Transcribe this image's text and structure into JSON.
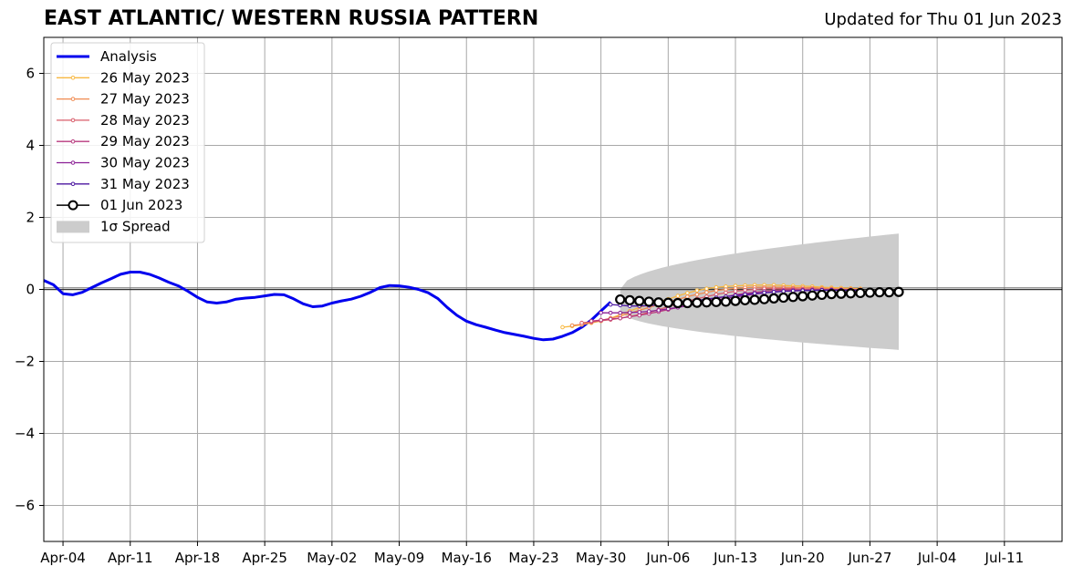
{
  "chart_data": {
    "type": "line",
    "title": "EAST ATLANTIC/ WESTERN RUSSIA PATTERN",
    "subtitle": "Updated for Thu 01 Jun 2023",
    "xlabel": "",
    "ylabel": "",
    "x_start": "2023-04-02",
    "x_end": "2023-07-17",
    "xlim": [
      "2023-04-02",
      "2023-07-17"
    ],
    "ylim": [
      -7,
      7
    ],
    "yticks": [
      -6,
      -4,
      -2,
      0,
      2,
      4,
      6
    ],
    "ytick_labels": [
      "−6",
      "−4",
      "−2",
      "0",
      "2",
      "4",
      "6"
    ],
    "xticks": [
      {
        "date": "2023-04-04",
        "label": "Apr-04"
      },
      {
        "date": "2023-04-11",
        "label": "Apr-11"
      },
      {
        "date": "2023-04-18",
        "label": "Apr-18"
      },
      {
        "date": "2023-04-25",
        "label": "Apr-25"
      },
      {
        "date": "2023-05-02",
        "label": "May-02"
      },
      {
        "date": "2023-05-09",
        "label": "May-09"
      },
      {
        "date": "2023-05-16",
        "label": "May-16"
      },
      {
        "date": "2023-05-23",
        "label": "May-23"
      },
      {
        "date": "2023-05-30",
        "label": "May-30"
      },
      {
        "date": "2023-06-06",
        "label": "Jun-06"
      },
      {
        "date": "2023-06-13",
        "label": "Jun-13"
      },
      {
        "date": "2023-06-20",
        "label": "Jun-20"
      },
      {
        "date": "2023-06-27",
        "label": "Jun-27"
      },
      {
        "date": "2023-07-04",
        "label": "Jul-04"
      },
      {
        "date": "2023-07-11",
        "label": "Jul-11"
      }
    ],
    "grid": true,
    "legend_position": "top-left",
    "analysis": {
      "name": "Analysis",
      "color": "#0000ee",
      "x": [
        "2023-04-02",
        "2023-04-03",
        "2023-04-04",
        "2023-04-05",
        "2023-04-06",
        "2023-04-07",
        "2023-04-08",
        "2023-04-09",
        "2023-04-10",
        "2023-04-11",
        "2023-04-12",
        "2023-04-13",
        "2023-04-14",
        "2023-04-15",
        "2023-04-16",
        "2023-04-17",
        "2023-04-18",
        "2023-04-19",
        "2023-04-20",
        "2023-04-21",
        "2023-04-22",
        "2023-04-23",
        "2023-04-24",
        "2023-04-25",
        "2023-04-26",
        "2023-04-27",
        "2023-04-28",
        "2023-04-29",
        "2023-04-30",
        "2023-05-01",
        "2023-05-02",
        "2023-05-03",
        "2023-05-04",
        "2023-05-05",
        "2023-05-06",
        "2023-05-07",
        "2023-05-08",
        "2023-05-09",
        "2023-05-10",
        "2023-05-11",
        "2023-05-12",
        "2023-05-13",
        "2023-05-14",
        "2023-05-15",
        "2023-05-16",
        "2023-05-17",
        "2023-05-18",
        "2023-05-19",
        "2023-05-20",
        "2023-05-21",
        "2023-05-22",
        "2023-05-23",
        "2023-05-24",
        "2023-05-25",
        "2023-05-26",
        "2023-05-27",
        "2023-05-28",
        "2023-05-29",
        "2023-05-30",
        "2023-05-31"
      ],
      "values": [
        0.25,
        0.13,
        -0.12,
        -0.15,
        -0.08,
        0.05,
        0.18,
        0.3,
        0.42,
        0.48,
        0.48,
        0.42,
        0.32,
        0.2,
        0.1,
        -0.05,
        -0.22,
        -0.35,
        -0.38,
        -0.35,
        -0.27,
        -0.24,
        -0.22,
        -0.18,
        -0.14,
        -0.15,
        -0.26,
        -0.4,
        -0.48,
        -0.46,
        -0.38,
        -0.32,
        -0.27,
        -0.19,
        -0.08,
        0.05,
        0.11,
        0.1,
        0.06,
        0.0,
        -0.09,
        -0.25,
        -0.5,
        -0.72,
        -0.88,
        -0.98,
        -1.05,
        -1.13,
        -1.2,
        -1.25,
        -1.3,
        -1.36,
        -1.4,
        -1.38,
        -1.3,
        -1.2,
        -1.05,
        -0.85,
        -0.6,
        -0.35
      ]
    },
    "forecasts": [
      {
        "name": "26 May 2023",
        "color": "#f8b840",
        "start": "2023-05-26",
        "values": [
          -1.05,
          -1.02,
          -0.98,
          -0.93,
          -0.88,
          -0.8,
          -0.7,
          -0.6,
          -0.5,
          -0.42,
          -0.34,
          -0.27,
          -0.18,
          -0.1,
          -0.03,
          0.02,
          0.06,
          0.08,
          0.1,
          0.11,
          0.12,
          0.12,
          0.12,
          0.11,
          0.1,
          0.09,
          0.08,
          0.06,
          0.05,
          0.04,
          0.03,
          0.02
        ]
      },
      {
        "name": "27 May 2023",
        "color": "#f08a50",
        "start": "2023-05-27",
        "values": [
          -1.0,
          -0.97,
          -0.92,
          -0.86,
          -0.8,
          -0.74,
          -0.66,
          -0.58,
          -0.5,
          -0.42,
          -0.35,
          -0.28,
          -0.2,
          -0.14,
          -0.08,
          -0.03,
          0.0,
          0.03,
          0.05,
          0.06,
          0.06,
          0.06,
          0.06,
          0.05,
          0.05,
          0.04,
          0.03,
          0.02,
          0.01,
          0.01,
          0.0
        ]
      },
      {
        "name": "28 May 2023",
        "color": "#d85c6a",
        "start": "2023-05-28",
        "values": [
          -0.93,
          -0.9,
          -0.87,
          -0.84,
          -0.8,
          -0.75,
          -0.7,
          -0.64,
          -0.56,
          -0.48,
          -0.4,
          -0.33,
          -0.26,
          -0.2,
          -0.14,
          -0.09,
          -0.05,
          -0.02,
          0.0,
          0.02,
          0.02,
          0.02,
          0.02,
          0.01,
          0.01,
          0.0,
          0.0,
          -0.01,
          -0.01,
          -0.01
        ]
      },
      {
        "name": "29 May 2023",
        "color": "#b8397e",
        "start": "2023-05-29",
        "values": [
          -0.88,
          -0.85,
          -0.82,
          -0.8,
          -0.76,
          -0.72,
          -0.67,
          -0.62,
          -0.56,
          -0.5,
          -0.43,
          -0.37,
          -0.31,
          -0.25,
          -0.2,
          -0.15,
          -0.11,
          -0.08,
          -0.05,
          -0.03,
          -0.02,
          -0.01,
          -0.01,
          -0.01,
          -0.01,
          -0.01,
          -0.01,
          -0.01,
          -0.01
        ]
      },
      {
        "name": "30 May 2023",
        "color": "#8b1f95",
        "start": "2023-05-30",
        "values": [
          -0.65,
          -0.65,
          -0.65,
          -0.64,
          -0.63,
          -0.61,
          -0.58,
          -0.54,
          -0.5,
          -0.45,
          -0.4,
          -0.35,
          -0.3,
          -0.25,
          -0.21,
          -0.17,
          -0.13,
          -0.1,
          -0.07,
          -0.05,
          -0.04,
          -0.03,
          -0.02,
          -0.02,
          -0.02,
          -0.02,
          -0.02,
          -0.02
        ]
      },
      {
        "name": "31 May 2023",
        "color": "#4b16a0",
        "start": "2023-05-31",
        "values": [
          -0.42,
          -0.44,
          -0.46,
          -0.46,
          -0.45,
          -0.43,
          -0.41,
          -0.38,
          -0.35,
          -0.31,
          -0.27,
          -0.23,
          -0.2,
          -0.17,
          -0.14,
          -0.11,
          -0.09,
          -0.07,
          -0.05,
          -0.04,
          -0.03,
          -0.03,
          -0.02,
          -0.02,
          -0.02,
          -0.02,
          -0.02
        ]
      },
      {
        "name": "01 Jun 2023",
        "color": "#000000",
        "start": "2023-06-01",
        "values": [
          -0.28,
          -0.3,
          -0.32,
          -0.34,
          -0.36,
          -0.37,
          -0.38,
          -0.38,
          -0.37,
          -0.36,
          -0.35,
          -0.34,
          -0.32,
          -0.3,
          -0.29,
          -0.27,
          -0.25,
          -0.23,
          -0.21,
          -0.19,
          -0.17,
          -0.15,
          -0.13,
          -0.12,
          -0.11,
          -0.1,
          -0.09,
          -0.08,
          -0.08,
          -0.07
        ]
      }
    ],
    "spread": {
      "name": "1σ Spread",
      "color": "#cccccc",
      "start": "2023-06-01",
      "end": "2023-06-30",
      "upper_start": 0.0,
      "upper_end": 1.55,
      "lower_start": -0.6,
      "lower_end": -1.68
    }
  }
}
